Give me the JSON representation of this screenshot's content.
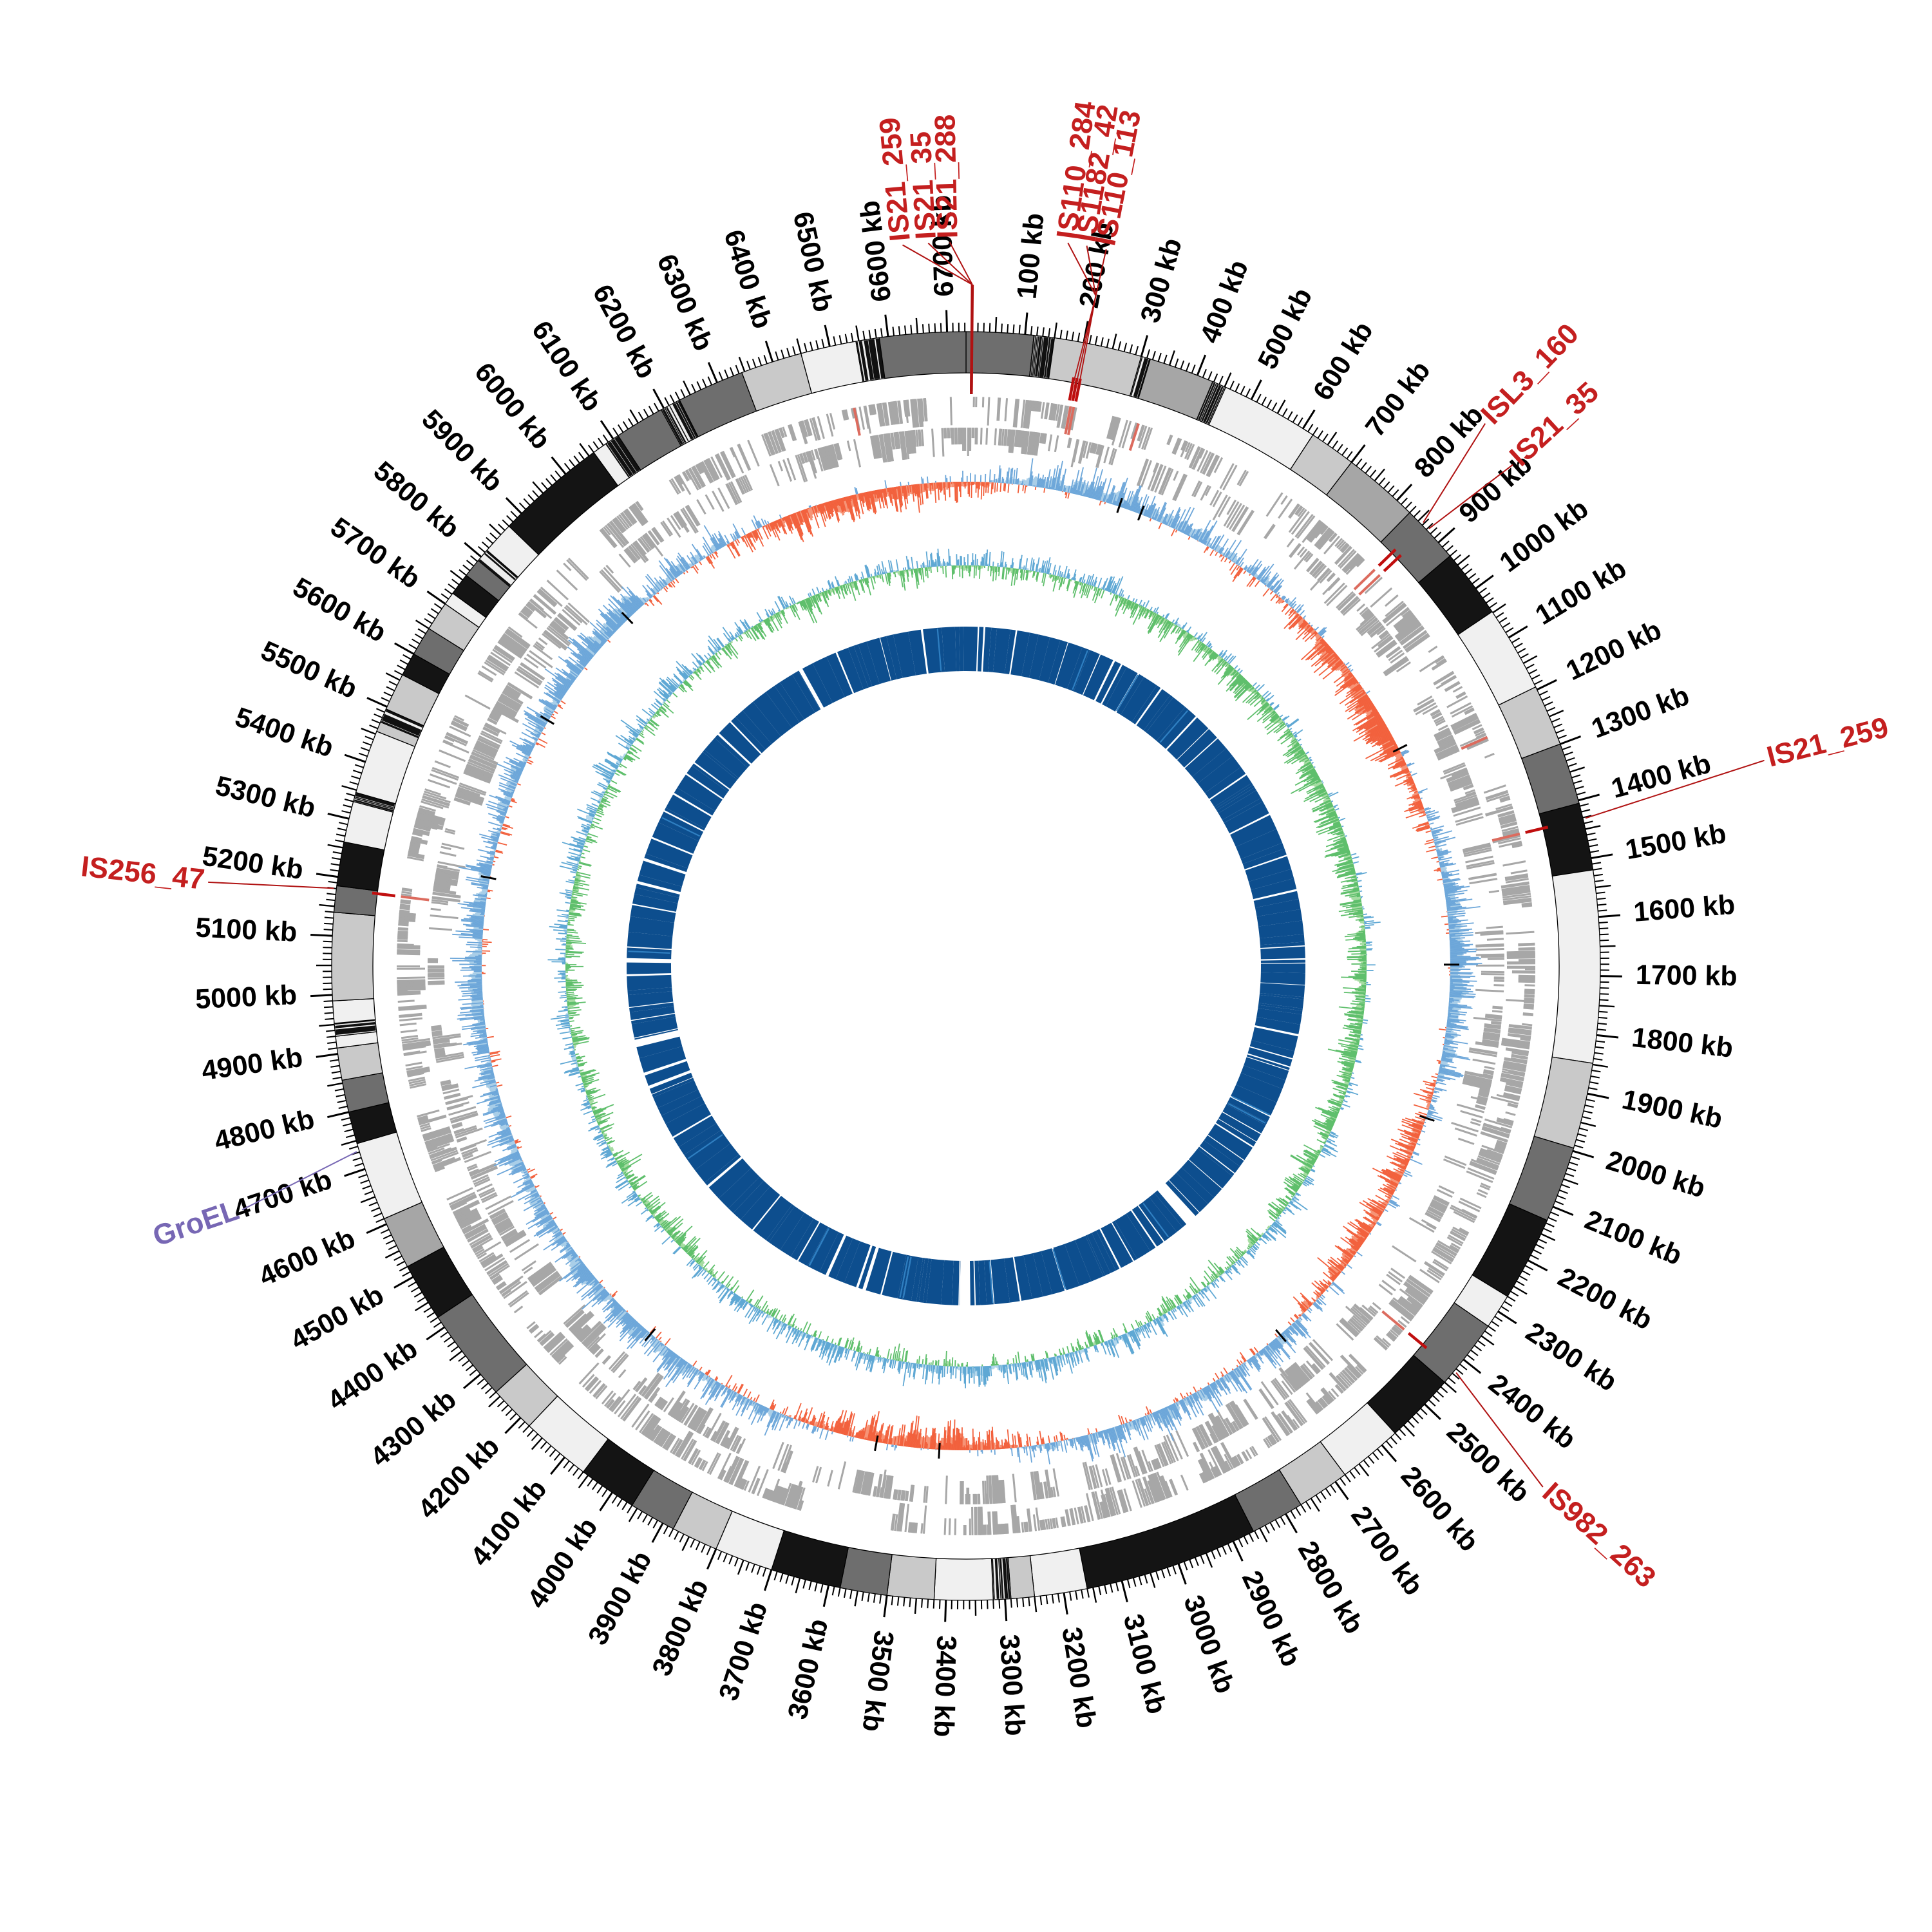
{
  "chart_data": {
    "type": "circular-genome-map",
    "genome_length_kb": 6732,
    "center": [
      1500,
      1500
    ],
    "tick_unit": "kb",
    "tick_minor_kb": 10,
    "tick_medium_kb": 50,
    "tick_major_kb": 100,
    "tick_labels": [
      "100 kb",
      "200 kb",
      "300 kb",
      "400 kb",
      "500 kb",
      "600 kb",
      "700 kb",
      "800 kb",
      "900 kb",
      "1000 kb",
      "1100 kb",
      "1200 kb",
      "1300 kb",
      "1400 kb",
      "1500 kb",
      "1600 kb",
      "1700 kb",
      "1800 kb",
      "1900 kb",
      "2000 kb",
      "2100 kb",
      "2200 kb",
      "2300 kb",
      "2400 kb",
      "2500 kb",
      "2600 kb",
      "2700 kb",
      "2800 kb",
      "2900 kb",
      "3000 kb",
      "3100 kb",
      "3200 kb",
      "3300 kb",
      "3400 kb",
      "3500 kb",
      "3600 kb",
      "3700 kb",
      "3800 kb",
      "3900 kb",
      "4000 kb",
      "4100 kb",
      "4200 kb",
      "4300 kb",
      "4400 kb",
      "4500 kb",
      "4600 kb",
      "4700 kb",
      "4800 kb",
      "4900 kb",
      "5000 kb",
      "5100 kb",
      "5200 kb",
      "5300 kb",
      "5400 kb",
      "5500 kb",
      "5600 kb",
      "5700 kb",
      "5800 kb",
      "5900 kb",
      "6000 kb",
      "6100 kb",
      "6200 kb",
      "6300 kb",
      "6400 kb",
      "6500 kb",
      "6600 kb",
      "6700 kb"
    ],
    "karyotype_shades": {
      "w": "#F0F0F0",
      "l": "#C9C9C9",
      "m": "#A6A6A6",
      "d": "#6E6E6E",
      "k": "#141414",
      "s": "#EDEDED"
    },
    "karyotype_segments": [
      [
        0,
        115,
        "d"
      ],
      [
        115,
        150,
        "s"
      ],
      [
        150,
        300,
        "l"
      ],
      [
        300,
        316,
        "s"
      ],
      [
        316,
        428,
        "m"
      ],
      [
        428,
        452,
        "s"
      ],
      [
        452,
        620,
        "w"
      ],
      [
        620,
        700,
        "l"
      ],
      [
        700,
        830,
        "m"
      ],
      [
        830,
        930,
        "d"
      ],
      [
        930,
        1048,
        "k"
      ],
      [
        1048,
        1195,
        "w"
      ],
      [
        1195,
        1300,
        "l"
      ],
      [
        1300,
        1405,
        "d"
      ],
      [
        1405,
        1520,
        "k"
      ],
      [
        1520,
        1848,
        "w"
      ],
      [
        1848,
        1995,
        "l"
      ],
      [
        1995,
        2125,
        "d"
      ],
      [
        2125,
        2270,
        "k"
      ],
      [
        2270,
        2330,
        "w"
      ],
      [
        2330,
        2450,
        "d"
      ],
      [
        2450,
        2570,
        "k"
      ],
      [
        2570,
        2680,
        "w"
      ],
      [
        2680,
        2770,
        "l"
      ],
      [
        2770,
        2862,
        "d"
      ],
      [
        2862,
        3160,
        "k"
      ],
      [
        3160,
        3250,
        "w"
      ],
      [
        3250,
        3290,
        "l"
      ],
      [
        3290,
        3320,
        "s"
      ],
      [
        3320,
        3420,
        "w"
      ],
      [
        3420,
        3500,
        "l"
      ],
      [
        3500,
        3580,
        "d"
      ],
      [
        3580,
        3700,
        "k"
      ],
      [
        3700,
        3800,
        "w"
      ],
      [
        3800,
        3880,
        "l"
      ],
      [
        3880,
        3960,
        "d"
      ],
      [
        3960,
        4060,
        "k"
      ],
      [
        4060,
        4180,
        "w"
      ],
      [
        4180,
        4260,
        "l"
      ],
      [
        4260,
        4420,
        "d"
      ],
      [
        4420,
        4520,
        "k"
      ],
      [
        4520,
        4610,
        "m"
      ],
      [
        4610,
        4745,
        "w"
      ],
      [
        4745,
        4800,
        "k"
      ],
      [
        4800,
        4855,
        "d"
      ],
      [
        4855,
        4910,
        "l"
      ],
      [
        4910,
        4930,
        "w"
      ],
      [
        4930,
        4952,
        "s"
      ],
      [
        4952,
        4990,
        "w"
      ],
      [
        4990,
        5140,
        "l"
      ],
      [
        5140,
        5185,
        "d"
      ],
      [
        5185,
        5260,
        "k"
      ],
      [
        5260,
        5330,
        "w"
      ],
      [
        5330,
        5346,
        "s"
      ],
      [
        5346,
        5455,
        "w"
      ],
      [
        5455,
        5472,
        "l"
      ],
      [
        5472,
        5496,
        "s"
      ],
      [
        5496,
        5560,
        "l"
      ],
      [
        5560,
        5600,
        "k"
      ],
      [
        5600,
        5650,
        "d"
      ],
      [
        5650,
        5700,
        "l"
      ],
      [
        5700,
        5722,
        "w"
      ],
      [
        5722,
        5760,
        "k"
      ],
      [
        5760,
        5792,
        "d"
      ],
      [
        5792,
        5815,
        "s"
      ],
      [
        5815,
        5870,
        "w"
      ],
      [
        5870,
        6060,
        "k"
      ],
      [
        6060,
        6085,
        "w"
      ],
      [
        6085,
        6110,
        "s"
      ],
      [
        6110,
        6195,
        "d"
      ],
      [
        6195,
        6230,
        "s"
      ],
      [
        6230,
        6345,
        "d"
      ],
      [
        6345,
        6450,
        "l"
      ],
      [
        6450,
        6545,
        "w"
      ],
      [
        6545,
        6585,
        "s"
      ],
      [
        6585,
        6732,
        "d"
      ]
    ],
    "tracks": [
      {
        "name": "karyotype",
        "r_in": 921,
        "r_out": 985,
        "stroke": "#000000"
      },
      {
        "name": "is-mark-ring",
        "r_in": 893,
        "r_out": 929,
        "color": "#C00E0E"
      },
      {
        "name": "cds-forward",
        "r_in": 840,
        "r_out": 884,
        "color": "#A7A7A7"
      },
      {
        "name": "cds-reverse",
        "r_in": 792,
        "r_out": 836,
        "color": "#A7A7A7"
      },
      {
        "name": "gc-skew",
        "baseline_r": 752,
        "amplitude": 52,
        "pos_color": "#6CA6D9",
        "pos_fill": "#A9CEE8",
        "neg_color": "#F2603C",
        "neg_fill": "#F69477"
      },
      {
        "name": "gc-content",
        "baseline_r": 622,
        "amplitude": 50,
        "pos_color": "#5FA8D4",
        "pos_fill": "#B3D7EC",
        "neg_color": "#5FBF6C",
        "neg_fill": "#A6DCA2"
      },
      {
        "name": "coverage-ring",
        "r_in": 458,
        "r_out": 527,
        "color": "#0D4E8E",
        "accent": "#2F7FC1"
      }
    ],
    "ticks_geom": {
      "r_base": 985,
      "len_minor": 14,
      "len_medium": 24,
      "len_major": 34,
      "label_r": 1040
    },
    "skew_bias_points": [
      [
        0,
        -0.3
      ],
      [
        150,
        0.5
      ],
      [
        400,
        0.6
      ],
      [
        700,
        0.2
      ],
      [
        950,
        -0.5
      ],
      [
        1150,
        -0.7
      ],
      [
        1350,
        0.1
      ],
      [
        1600,
        0.7
      ],
      [
        1900,
        0.4
      ],
      [
        2100,
        -0.4
      ],
      [
        2350,
        -0.6
      ],
      [
        2600,
        0.3
      ],
      [
        2900,
        0.5
      ],
      [
        3200,
        0.2
      ],
      [
        3400,
        -0.7
      ],
      [
        3650,
        -0.5
      ],
      [
        3800,
        0.3
      ],
      [
        4100,
        0.5
      ],
      [
        4400,
        0.6
      ],
      [
        4700,
        0.4
      ],
      [
        5000,
        0.6
      ],
      [
        5300,
        0.3
      ],
      [
        5600,
        0.5
      ],
      [
        5900,
        0.6
      ],
      [
        6150,
        0.2
      ],
      [
        6350,
        -0.6
      ],
      [
        6600,
        -0.5
      ],
      [
        6732,
        -0.3
      ]
    ],
    "annotations": [
      {
        "text": "IS21_259",
        "color": "red",
        "target_kb": 10,
        "label_kb": 6638,
        "label_r": 1130,
        "group": "top"
      },
      {
        "text": "IS21_35",
        "color": "red",
        "target_kb": 10,
        "label_kb": 6676,
        "label_r": 1130,
        "group": "top"
      },
      {
        "text": "IS21_288",
        "color": "red",
        "target_kb": 10,
        "label_kb": 6708,
        "label_r": 1130,
        "group": "top"
      },
      {
        "text": "IS110_284",
        "color": "red",
        "target_kb": 194,
        "label_kb": 150,
        "label_r": 1140,
        "group": "is110"
      },
      {
        "text": "IS1182_42",
        "color": "red",
        "target_kb": 200,
        "label_kb": 178,
        "label_r": 1140,
        "group": "is110"
      },
      {
        "text": "IS110_113",
        "color": "red",
        "target_kb": 206,
        "label_kb": 207,
        "label_r": 1140,
        "group": "is110"
      },
      {
        "text": "ISL3_160",
        "color": "red",
        "target_kb": 858,
        "label_kb": 818,
        "label_r": 1172
      },
      {
        "text": "IS21_35",
        "color": "red",
        "target_kb": 872,
        "label_kb": 888,
        "label_r": 1158
      },
      {
        "text": "IS21_259",
        "color": "red",
        "target_kb": 1432,
        "label_kb": 1413,
        "label_r": 1286
      },
      {
        "text": "IS982_263",
        "color": "red",
        "target_kb": 2425,
        "label_kb": 2470,
        "label_r": 1213
      },
      {
        "text": "IS256_47",
        "color": "red",
        "target_kb": 5180,
        "label_kb": 5167,
        "label_r": 1190
      },
      {
        "text": "GroEL",
        "color": "purple",
        "target_kb": 4732,
        "label_kb": 4701,
        "label_r": 1192
      }
    ],
    "junctions": {
      "top": {
        "kb": 10,
        "r": 1058,
        "drop_r": 888,
        "drop_w": 4.5
      },
      "is110": {
        "kb": 205,
        "r": 1060,
        "drop_r": 905,
        "drop_w": 1.8,
        "targets": [
          194,
          200,
          206
        ]
      }
    },
    "red_marks_kb": [
      10,
      194,
      200,
      206,
      858,
      872,
      1432,
      2425,
      5180
    ],
    "cds_red_bars_kb": [
      198,
      204,
      330,
      858,
      872,
      1240,
      1432,
      2425,
      5180,
      6520
    ],
    "baseline_marks_kb": [
      345,
      395,
      1185,
      1680,
      2025,
      2610,
      3425,
      3565,
      4125,
      5245,
      5618,
      5905
    ],
    "big_gaps_kb": [
      [
        2570,
        2603
      ],
      [
        3352,
        3386
      ],
      [
        4790,
        4814
      ],
      [
        5060,
        5074
      ],
      [
        6180,
        6193
      ]
    ],
    "gap_zones_kb": [
      [
        3300,
        4700
      ],
      [
        4900,
        5600
      ]
    ],
    "seeds": {
      "karyo": 101,
      "cdsA": 7,
      "cdsB": 8,
      "skew": 11,
      "gc": 13,
      "navy": 17,
      "navy_lines": 19
    }
  },
  "colors": {
    "annotation_red": "#C41F1F",
    "leader_red": "#B01212",
    "annotation_purple": "#7767B4",
    "dash_red": "#C00E0E",
    "tick_color": "#000000",
    "background": "#FFFFFF"
  },
  "fonts": {
    "tick_size": 43,
    "annotation_size": 45
  }
}
